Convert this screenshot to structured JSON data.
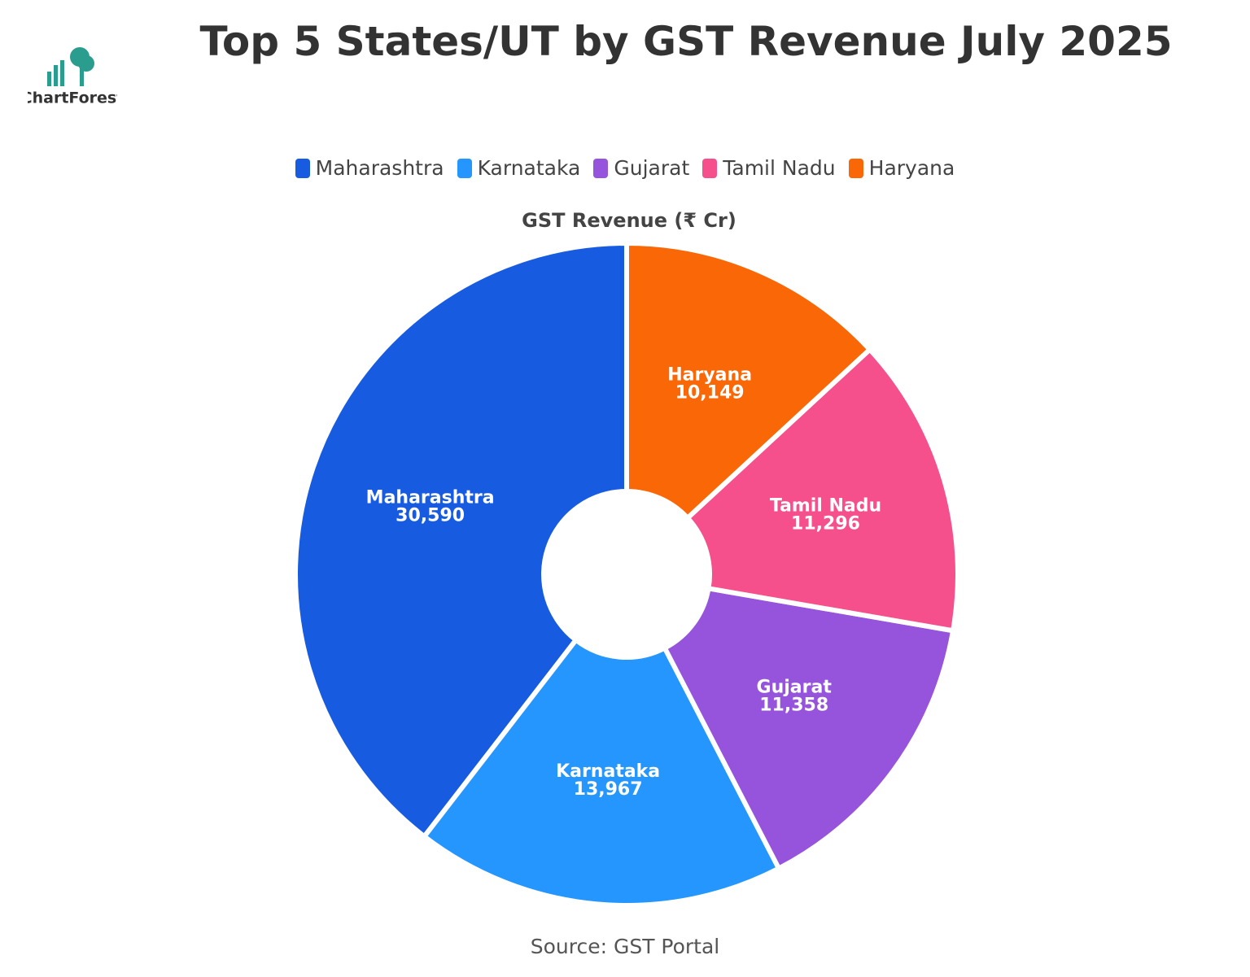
{
  "brand": "ChartForest",
  "chart_data": {
    "type": "donut",
    "title": "Top 5 States/UT by GST Revenue July 2025",
    "subtitle": "GST Revenue (₹ Cr)",
    "source": "Source: GST Portal",
    "categories": [
      "Maharashtra",
      "Karnataka",
      "Gujarat",
      "Tamil Nadu",
      "Haryana"
    ],
    "values": [
      30590,
      13967,
      11358,
      11296,
      10149
    ],
    "value_labels": [
      "30,590",
      "13,967",
      "11,358",
      "11,296",
      "10,149"
    ],
    "colors": [
      "#175ce0",
      "#2496fd",
      "#9654dc",
      "#f5508c",
      "#f96706"
    ],
    "direction": "counterclockwise"
  }
}
